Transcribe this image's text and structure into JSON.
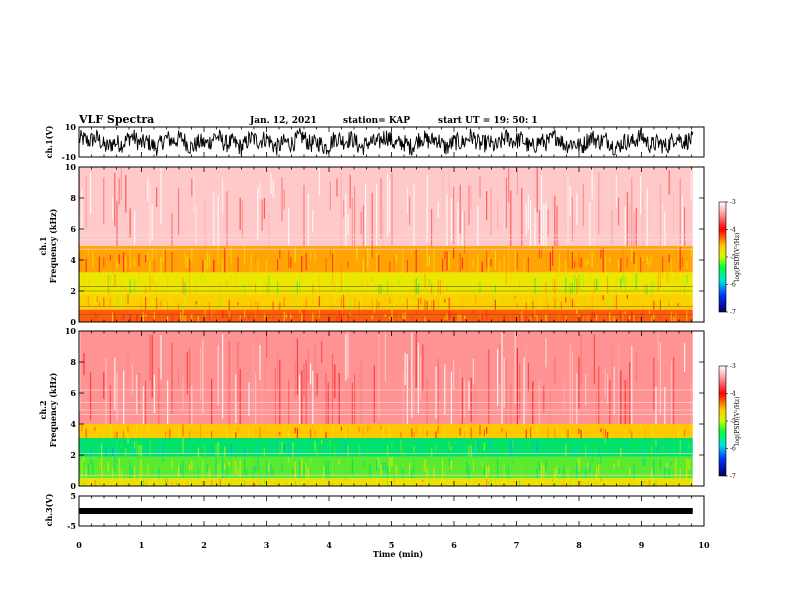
{
  "header": {
    "title": "VLF Spectra",
    "date": "Jan. 12, 2021",
    "station": "station= KAP",
    "start": "start  UT  =   19: 50: 1"
  },
  "colors": {
    "spectrum": [
      "#ffffff",
      "#ff2020",
      "#ffcc00",
      "#eeee00",
      "#00e060",
      "#00d8c0",
      "#0040ff",
      "#000080"
    ]
  },
  "chart_data": [
    {
      "id": "ch1v",
      "type": "line",
      "ylabel": "ch.1(V)",
      "ylim": [
        -10,
        10
      ],
      "yticks": [
        -10,
        10
      ],
      "xlim": [
        0,
        10
      ],
      "x_extent": 9.82,
      "description_of_signal": "dense noisy waveform near zero, amplitude approx 7 V"
    },
    {
      "id": "ch1spec",
      "type": "heatmap",
      "ylabel": "ch.1\nFrequency (kHz)",
      "ylim": [
        0,
        10
      ],
      "yticks": [
        0,
        2,
        4,
        6,
        8,
        10
      ],
      "xlim": [
        0,
        10
      ],
      "x_extent": 9.82,
      "colorbar": {
        "label": "log(PSD)(V²/Hz)",
        "range": [
          -7,
          -3
        ],
        "ticks": [
          -3,
          -4,
          -5,
          -6,
          -7
        ]
      },
      "bands": [
        {
          "from": 0.0,
          "to": 0.8,
          "level": -4.2
        },
        {
          "from": 0.8,
          "to": 1.8,
          "level": -4.6
        },
        {
          "from": 1.8,
          "to": 3.2,
          "level": -4.9
        },
        {
          "from": 3.2,
          "to": 4.9,
          "level": -4.4
        },
        {
          "from": 4.9,
          "to": 10.0,
          "level": -3.2
        }
      ]
    },
    {
      "id": "ch2spec",
      "type": "heatmap",
      "ylabel": "ch.2\nFrequency (kHz)",
      "ylim": [
        0,
        10
      ],
      "yticks": [
        0,
        2,
        4,
        6,
        8,
        10
      ],
      "xlim": [
        0,
        10
      ],
      "x_extent": 9.82,
      "colorbar": {
        "label": "log(PSD)(V²/Hz)",
        "range": [
          -7,
          -3
        ],
        "ticks": [
          -3,
          -4,
          -5,
          -6,
          -7
        ]
      },
      "bands": [
        {
          "from": 0.0,
          "to": 0.5,
          "level": -4.8
        },
        {
          "from": 0.5,
          "to": 1.9,
          "level": -5.3
        },
        {
          "from": 1.9,
          "to": 3.1,
          "level": -5.6
        },
        {
          "from": 3.1,
          "to": 4.0,
          "level": -4.5
        },
        {
          "from": 4.0,
          "to": 10.0,
          "level": -3.4
        }
      ]
    },
    {
      "id": "ch3v",
      "type": "line",
      "ylabel": "ch.3(V)",
      "ylim": [
        -5,
        5
      ],
      "yticks": [
        -5,
        5
      ],
      "xlim": [
        0,
        10
      ],
      "x_extent": 9.82,
      "level": 0
    }
  ],
  "xaxis": {
    "label": "Time  (min)",
    "ticks": [
      0,
      1,
      2,
      3,
      4,
      5,
      6,
      7,
      8,
      9,
      10
    ]
  }
}
